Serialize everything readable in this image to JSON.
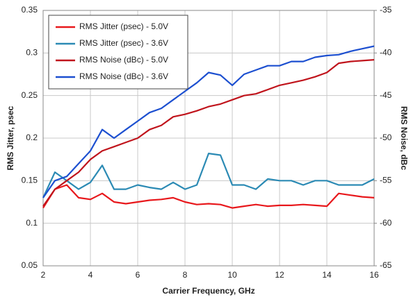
{
  "chart_data": {
    "type": "line",
    "xlabel": "Carrier Frequency, GHz",
    "ylabel": "RMS Jitter, psec",
    "y2label": "RMS Noise, dBc",
    "x": [
      2,
      2.5,
      3,
      3.5,
      4,
      4.5,
      5,
      5.5,
      6,
      6.5,
      7,
      7.5,
      8,
      8.5,
      9,
      9.5,
      10,
      10.5,
      11,
      11.5,
      12,
      12.5,
      13,
      13.5,
      14,
      14.5,
      15,
      15.5,
      16
    ],
    "xlim": [
      2,
      16
    ],
    "xticks": [
      2,
      4,
      6,
      8,
      10,
      12,
      14,
      16
    ],
    "ylim": [
      0.05,
      0.35
    ],
    "yticks": [
      0.05,
      0.1,
      0.15,
      0.2,
      0.25,
      0.3,
      0.35
    ],
    "y2lim": [
      -65,
      -35
    ],
    "y2ticks": [
      -65,
      -60,
      -55,
      -50,
      -45,
      -40,
      -35
    ],
    "grid": true,
    "legend": "upper left",
    "series": [
      {
        "name": "RMS Jitter (psec) - 5.0V",
        "color": "#e8181c",
        "axis": "y",
        "values": [
          0.118,
          0.14,
          0.145,
          0.13,
          0.128,
          0.135,
          0.125,
          0.123,
          0.125,
          0.127,
          0.128,
          0.13,
          0.125,
          0.122,
          0.123,
          0.122,
          0.118,
          0.12,
          0.122,
          0.12,
          0.121,
          0.121,
          0.122,
          0.121,
          0.12,
          0.135,
          0.133,
          0.131,
          0.13
        ]
      },
      {
        "name": "RMS Jitter (psec) - 3.6V",
        "color": "#2b8ab4",
        "axis": "y",
        "values": [
          0.13,
          0.16,
          0.15,
          0.14,
          0.148,
          0.168,
          0.14,
          0.14,
          0.145,
          0.142,
          0.14,
          0.148,
          0.14,
          0.145,
          0.182,
          0.18,
          0.145,
          0.145,
          0.14,
          0.152,
          0.15,
          0.15,
          0.145,
          0.15,
          0.15,
          0.145,
          0.145,
          0.145,
          0.152
        ]
      },
      {
        "name": "RMS Noise (dBc) - 5.0V",
        "color": "#c0141c",
        "axis": "y2",
        "values": [
          -58,
          -56,
          -55,
          -54,
          -52.5,
          -51.5,
          -51,
          -50.5,
          -50,
          -49,
          -48.5,
          -47.5,
          -47.2,
          -46.8,
          -46.3,
          -46,
          -45.5,
          -45,
          -44.8,
          -44.3,
          -43.8,
          -43.5,
          -43.2,
          -42.8,
          -42.3,
          -41.2,
          -41,
          -40.9,
          -40.8
        ]
      },
      {
        "name": "RMS Noise (dBc) - 3.6V",
        "color": "#1c4fd0",
        "axis": "y2",
        "values": [
          -57,
          -55,
          -54.5,
          -53,
          -51.5,
          -49,
          -50,
          -49,
          -48,
          -47,
          -46.5,
          -45.5,
          -44.5,
          -43.5,
          -42.3,
          -42.6,
          -43.8,
          -42.5,
          -42,
          -41.5,
          -41.5,
          -41,
          -41,
          -40.5,
          -40.3,
          -40.2,
          -39.8,
          -39.5,
          -39.2
        ]
      }
    ]
  }
}
